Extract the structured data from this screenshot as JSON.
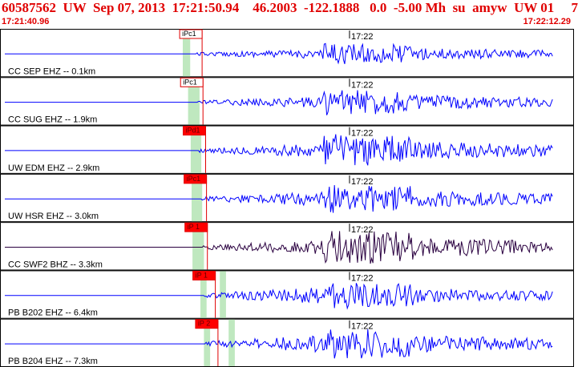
{
  "header": {
    "title": "60587562  UW  Sep 07, 2013  17:21:50.94    46.2003  -122.1888   0.0  -5.00 Mh  su  amyw  UW 01     7",
    "time_start": "17:21:40.96",
    "time_end": "17:22:12.29"
  },
  "colors": {
    "header_text": "#e00000",
    "trace_default": "#0000ff",
    "trace_alt": "#2a0040",
    "pick_line": "#e00000",
    "pick_box_fill": "#ff0000",
    "window_fill": "#bfe8bf",
    "track_border": "#000000"
  },
  "traces": [
    {
      "label": "CC SEP EHZ -- 0.1km",
      "time_mark": "17:22",
      "pick": "iPc1",
      "pick_style": "outline",
      "window_s": [
        0.0,
        0.42
      ],
      "pick_s": [
        0.55
      ],
      "extra_window_s": null,
      "onset": 0.2,
      "peak": 0.45,
      "color": "trace_default"
    },
    {
      "label": "CC SUG EHZ -- 1.9km",
      "time_mark": "17:22",
      "pick": "iPc1",
      "pick_style": "outline",
      "window_s": [
        0.3,
        0.95
      ],
      "pick_s": [
        0.6
      ],
      "extra_window_s": null,
      "onset": 0.24,
      "peak": 0.55,
      "color": "trace_default"
    },
    {
      "label": "UW EDM EHZ -- 2.9km",
      "time_mark": "17:22",
      "pick": "iPd1",
      "pick_style": "filled",
      "window_s": [
        0.45,
        1.05
      ],
      "pick_s": [
        0.75
      ],
      "extra_window_s": null,
      "onset": 0.28,
      "peak": 0.7,
      "color": "trace_default"
    },
    {
      "label": "UW HSR EHZ -- 3.0km",
      "time_mark": "17:22",
      "pick": "iPc1",
      "pick_style": "filled",
      "window_s": [
        0.5,
        1.1
      ],
      "pick_s": [
        0.8
      ],
      "extra_window_s": null,
      "onset": 0.3,
      "peak": 0.62,
      "color": "trace_default"
    },
    {
      "label": "CC SWF2 BHZ -- 3.3km",
      "time_mark": "17:22",
      "pick": "iP 1",
      "pick_style": "filled",
      "window_s": [
        0.55,
        1.2
      ],
      "pick_s": [
        0.85
      ],
      "extra_window_s": null,
      "onset": 0.3,
      "peak": 0.75,
      "color": "trace_alt"
    },
    {
      "label": "PB B202 EHZ -- 6.4km",
      "time_mark": "17:22",
      "pick": "iP 1",
      "pick_style": "filled",
      "window_s": [
        1.0,
        1.35
      ],
      "pick_s": [
        1.3
      ],
      "extra_window_s": [
        2.1,
        2.45
      ],
      "onset": 0.34,
      "peak": 0.55,
      "color": "trace_default"
    },
    {
      "label": "PB B204 EHZ -- 7.3km",
      "time_mark": "17:22",
      "pick": "iP 2",
      "pick_style": "filled",
      "window_s": [
        1.2,
        1.55
      ],
      "pick_s": [
        1.45
      ],
      "extra_window_s": [
        2.6,
        2.95
      ],
      "onset": 0.36,
      "peak": 0.65,
      "color": "trace_default"
    }
  ]
}
